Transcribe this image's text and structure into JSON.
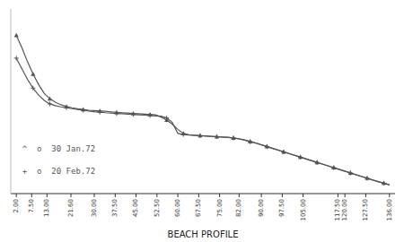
{
  "chart_data": {
    "type": "line",
    "xlabel": "BEACH PROFILE",
    "x": [
      2.0,
      4.0,
      6.0,
      8.0,
      10.0,
      12.0,
      14.0,
      16.0,
      18.0,
      20.0,
      22.0,
      24.0,
      26.0,
      28.0,
      30.0,
      32.0,
      34.0,
      36.0,
      38.0,
      40.0,
      42.0,
      44.0,
      46.0,
      48.0,
      50.0,
      52.0,
      54.0,
      56.0,
      58.0,
      60.0,
      62.0,
      64.0,
      66.0,
      68.0,
      70.0,
      72.0,
      74.0,
      76.0,
      78.0,
      80.0,
      82.0,
      84.0,
      86.0,
      88.0,
      90.0,
      92.0,
      94.0,
      96.0,
      98.0,
      100.0,
      102.0,
      104.0,
      106.0,
      108.0,
      110.0,
      112.0,
      114.0,
      116.0,
      118.0,
      120.0,
      122.0,
      124.0,
      126.0,
      128.0,
      130.0,
      132.0,
      134.0,
      136.0
    ],
    "series": [
      {
        "name": "^  o  30 Jan.72",
        "color": "#555555",
        "marker": "triangle",
        "values": [
          9.5,
          8.8,
          8.0,
          7.3,
          6.7,
          6.2,
          5.9,
          5.7,
          5.55,
          5.45,
          5.38,
          5.32,
          5.28,
          5.24,
          5.22,
          5.2,
          5.18,
          5.15,
          5.12,
          5.1,
          5.08,
          5.06,
          5.04,
          5.02,
          5.0,
          4.98,
          4.85,
          4.68,
          4.45,
          4.15,
          3.92,
          3.85,
          3.82,
          3.8,
          3.78,
          3.76,
          3.74,
          3.72,
          3.7,
          3.67,
          3.62,
          3.55,
          3.46,
          3.38,
          3.28,
          3.18,
          3.08,
          2.98,
          2.88,
          2.78,
          2.68,
          2.58,
          2.48,
          2.38,
          2.28,
          2.18,
          2.08,
          1.98,
          1.88,
          1.78,
          1.68,
          1.58,
          1.48,
          1.38,
          1.28,
          1.18,
          1.1,
          1.0
        ]
      },
      {
        "name": "+  o  20 Feb.72",
        "color": "#555555",
        "marker": "plus",
        "values": [
          8.2,
          7.6,
          7.0,
          6.5,
          6.1,
          5.8,
          5.6,
          5.5,
          5.43,
          5.38,
          5.33,
          5.28,
          5.24,
          5.2,
          5.16,
          5.13,
          5.1,
          5.08,
          5.06,
          5.04,
          5.02,
          5.0,
          4.98,
          4.96,
          4.94,
          4.92,
          4.9,
          4.8,
          4.55,
          3.92,
          3.86,
          3.83,
          3.81,
          3.79,
          3.77,
          3.75,
          3.73,
          3.71,
          3.69,
          3.66,
          3.61,
          3.54,
          3.45,
          3.37,
          3.27,
          3.17,
          3.07,
          2.97,
          2.87,
          2.77,
          2.67,
          2.57,
          2.47,
          2.37,
          2.27,
          2.17,
          2.07,
          1.97,
          1.87,
          1.77,
          1.67,
          1.57,
          1.47,
          1.37,
          1.27,
          1.17,
          1.09,
          0.99
        ]
      }
    ],
    "xlim": [
      0,
      138
    ],
    "ylim": [
      0.5,
      11
    ],
    "xticks": [
      {
        "value": 2.0,
        "label": "2.00"
      },
      {
        "value": 7.5,
        "label": "7.50"
      },
      {
        "value": 13.0,
        "label": "13.00"
      },
      {
        "value": 21.6,
        "label": "21.60"
      },
      {
        "value": 30.0,
        "label": "30.00"
      },
      {
        "value": 37.5,
        "label": "37.50"
      },
      {
        "value": 45.0,
        "label": "45.00"
      },
      {
        "value": 52.5,
        "label": "52.50"
      },
      {
        "value": 60.0,
        "label": "60.00"
      },
      {
        "value": 67.5,
        "label": "67.50"
      },
      {
        "value": 75.0,
        "label": "75.00"
      },
      {
        "value": 82.0,
        "label": "82.00"
      },
      {
        "value": 90.0,
        "label": "90.00"
      },
      {
        "value": 97.5,
        "label": "97.50"
      },
      {
        "value": 105.0,
        "label": "105.00"
      },
      {
        "value": 117.5,
        "label": "117.50"
      },
      {
        "value": 120.0,
        "label": "120.00"
      },
      {
        "value": 127.5,
        "label": "127.50"
      },
      {
        "value": 136.0,
        "label": "136.00"
      }
    ],
    "tick_labels": "x",
    "legend": "lower left",
    "grid": false
  }
}
